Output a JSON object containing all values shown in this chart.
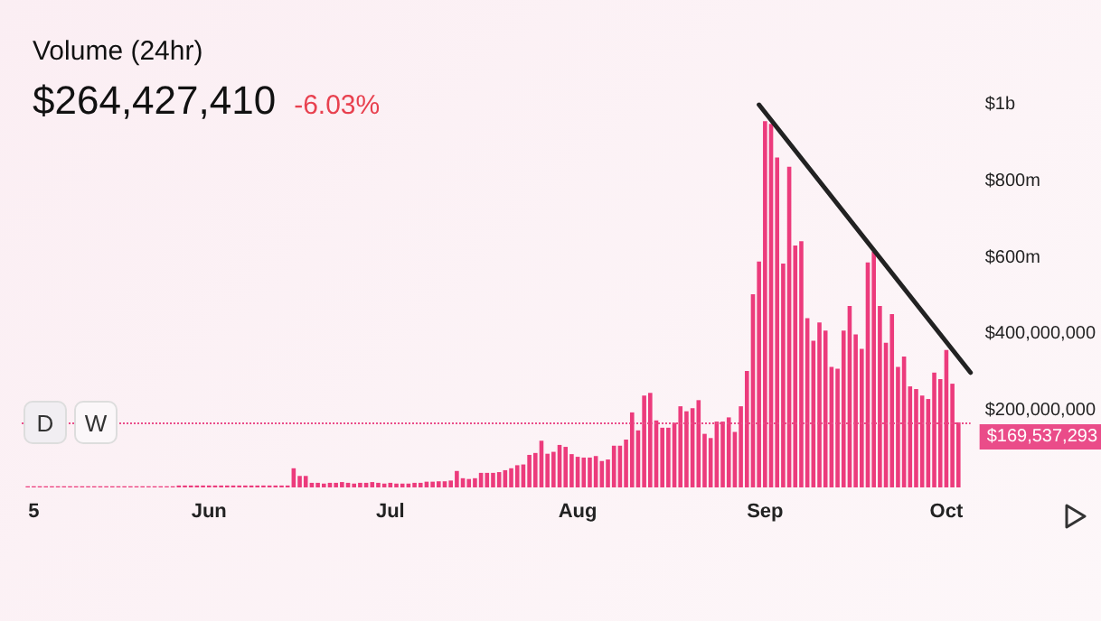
{
  "chart_data": {
    "type": "bar",
    "title": "Volume (24hr)",
    "subtitle": "$264,427,410",
    "annotations": [
      "-6.03%",
      "D",
      "W"
    ],
    "marker": "none",
    "xlim": [
      "--05-01",
      "--10-05"
    ],
    "xticks": [
      {
        "value": "--05-03",
        "label": "5"
      },
      {
        "value": "--06-01",
        "label": "Jun"
      },
      {
        "value": "--07-01",
        "label": "Jul"
      },
      {
        "value": "--08-01",
        "label": "Aug"
      },
      {
        "value": "--09-01",
        "label": "Sep"
      },
      {
        "value": "--10-01",
        "label": "Oct"
      }
    ],
    "ylim": [
      0,
      1000000000
    ],
    "yticks": [
      {
        "value": 200000000,
        "label": "$200,000,000"
      },
      {
        "value": 400000000,
        "label": "$400,000,000"
      },
      {
        "value": 600000000,
        "label": "$600m"
      },
      {
        "value": 800000000,
        "label": "$800m"
      },
      {
        "value": 1000000000,
        "label": "$1b"
      }
    ],
    "ref_lines": [
      {
        "axis": "y",
        "value": 169537293,
        "label": "$169,537,293",
        "color": "#ea4c89",
        "line_style": "dotted"
      }
    ],
    "series": [
      {
        "color": "#ec3b7c",
        "x": [
          "--05-02",
          "--05-03",
          "--05-04",
          "--05-05",
          "--05-06",
          "--05-07",
          "--05-08",
          "--05-09",
          "--05-10",
          "--05-11",
          "--05-12",
          "--05-13",
          "--05-14",
          "--05-15",
          "--05-16",
          "--05-17",
          "--05-18",
          "--05-19",
          "--05-20",
          "--05-21",
          "--05-22",
          "--05-23",
          "--05-24",
          "--05-25",
          "--05-26",
          "--05-27",
          "--05-28",
          "--05-29",
          "--05-30",
          "--05-31",
          "--06-01",
          "--06-02",
          "--06-03",
          "--06-04",
          "--06-05",
          "--06-06",
          "--06-07",
          "--06-08",
          "--06-09",
          "--06-10",
          "--06-11",
          "--06-12",
          "--06-13",
          "--06-14",
          "--06-15",
          "--06-16",
          "--06-17",
          "--06-18",
          "--06-19",
          "--06-20",
          "--06-21",
          "--06-22",
          "--06-23",
          "--06-24",
          "--06-25",
          "--06-26",
          "--06-27",
          "--06-28",
          "--06-29",
          "--06-30",
          "--07-01",
          "--07-02",
          "--07-03",
          "--07-04",
          "--07-05",
          "--07-06",
          "--07-07",
          "--07-08",
          "--07-09",
          "--07-10",
          "--07-11",
          "--07-12",
          "--07-13",
          "--07-14",
          "--07-15",
          "--07-16",
          "--07-17",
          "--07-18",
          "--07-19",
          "--07-20",
          "--07-21",
          "--07-22",
          "--07-23",
          "--07-24",
          "--07-25",
          "--07-26",
          "--07-27",
          "--07-28",
          "--07-29",
          "--07-30",
          "--07-31",
          "--08-01",
          "--08-02",
          "--08-03",
          "--08-04",
          "--08-05",
          "--08-06",
          "--08-07",
          "--08-08",
          "--08-09",
          "--08-10",
          "--08-11",
          "--08-12",
          "--08-13",
          "--08-14",
          "--08-15",
          "--08-16",
          "--08-17",
          "--08-18",
          "--08-19",
          "--08-20",
          "--08-21",
          "--08-22",
          "--08-23",
          "--08-24",
          "--08-25",
          "--08-26",
          "--08-27",
          "--08-28",
          "--08-29",
          "--08-30",
          "--08-31",
          "--09-01",
          "--09-02",
          "--09-03",
          "--09-04",
          "--09-05",
          "--09-06",
          "--09-07",
          "--09-08",
          "--09-09",
          "--09-10",
          "--09-11",
          "--09-12",
          "--09-13",
          "--09-14",
          "--09-15",
          "--09-16",
          "--09-17",
          "--09-18",
          "--09-19",
          "--09-20",
          "--09-21",
          "--09-22",
          "--09-23",
          "--09-24",
          "--09-25",
          "--09-26",
          "--09-27",
          "--09-28",
          "--09-29",
          "--09-30",
          "--10-01",
          "--10-02",
          "--10-03"
        ],
        "values": [
          3000000,
          3000000,
          3000000,
          3000000,
          3000000,
          3000000,
          3000000,
          3000000,
          3000000,
          3000000,
          3000000,
          3000000,
          3000000,
          3000000,
          3000000,
          3000000,
          3000000,
          3000000,
          3000000,
          3000000,
          3000000,
          3000000,
          3000000,
          3000000,
          3000000,
          5000000,
          5000000,
          5000000,
          5000000,
          5000000,
          5000000,
          5000000,
          5000000,
          5000000,
          5000000,
          5000000,
          5000000,
          5000000,
          5000000,
          5000000,
          5000000,
          5000000,
          5000000,
          5000000,
          50000000,
          30000000,
          30000000,
          12000000,
          12000000,
          10000000,
          12000000,
          12000000,
          14000000,
          12000000,
          10000000,
          12000000,
          12000000,
          14000000,
          12000000,
          10000000,
          12000000,
          10000000,
          10000000,
          10000000,
          12000000,
          12000000,
          15000000,
          15000000,
          16000000,
          16000000,
          18000000,
          43000000,
          24000000,
          22000000,
          24000000,
          38000000,
          38000000,
          38000000,
          40000000,
          45000000,
          50000000,
          58000000,
          60000000,
          85000000,
          90000000,
          122000000,
          88000000,
          93000000,
          111000000,
          106000000,
          87000000,
          80000000,
          78000000,
          78000000,
          82000000,
          69000000,
          73000000,
          109000000,
          109000000,
          125000000,
          196000000,
          149000000,
          240000000,
          247000000,
          175000000,
          156000000,
          156000000,
          169000000,
          212000000,
          199000000,
          207000000,
          228000000,
          140000000,
          129000000,
          172000000,
          172000000,
          183000000,
          145000000,
          212000000,
          304000000,
          505000000,
          590000000,
          957000000,
          950000000,
          862000000,
          585000000,
          838000000,
          632000000,
          643000000,
          442000000,
          383000000,
          431000000,
          410000000,
          315000000,
          310000000,
          410000000,
          474000000,
          400000000,
          362000000,
          588000000,
          616000000,
          474000000,
          378000000,
          453000000,
          315000000,
          342000000,
          264000000,
          257000000,
          240000000,
          231000000,
          300000000,
          283000000,
          359000000,
          271000000,
          170000000
        ]
      },
      {
        "type": "line",
        "color": "#222222",
        "line_style": "solid",
        "x": [
          "--08-31",
          "--10-05"
        ],
        "values": [
          1000000000,
          300000000
        ]
      }
    ]
  }
}
